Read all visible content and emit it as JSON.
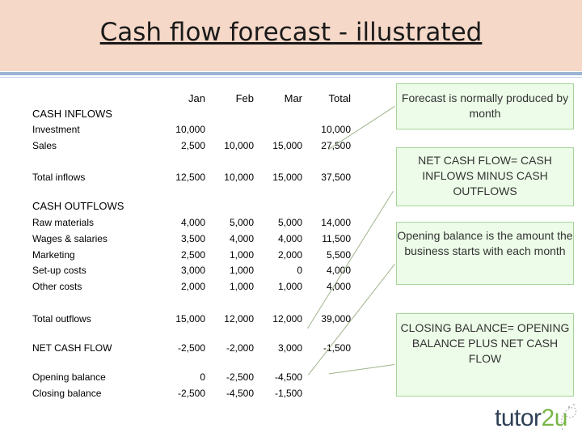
{
  "title": "Cash flow forecast - illustrated",
  "headers": {
    "jan": "Jan",
    "feb": "Feb",
    "mar": "Mar",
    "total": "Total"
  },
  "sections": {
    "inflows": "CASH INFLOWS",
    "outflows": "CASH OUTFLOWS"
  },
  "rows": {
    "investment": {
      "label": "Investment",
      "jan": "10,000",
      "feb": "",
      "mar": "",
      "total": "10,000"
    },
    "sales": {
      "label": "Sales",
      "jan": "2,500",
      "feb": "10,000",
      "mar": "15,000",
      "total": "27,500"
    },
    "total_inflows": {
      "label": "Total inflows",
      "jan": "12,500",
      "feb": "10,000",
      "mar": "15,000",
      "total": "37,500"
    },
    "raw_materials": {
      "label": "Raw materials",
      "jan": "4,000",
      "feb": "5,000",
      "mar": "5,000",
      "total": "14,000"
    },
    "wages": {
      "label": "Wages & salaries",
      "jan": "3,500",
      "feb": "4,000",
      "mar": "4,000",
      "total": "11,500"
    },
    "marketing": {
      "label": "Marketing",
      "jan": "2,500",
      "feb": "1,000",
      "mar": "2,000",
      "total": "5,500"
    },
    "setup": {
      "label": "Set-up costs",
      "jan": "3,000",
      "feb": "1,000",
      "mar": "0",
      "total": "4,000"
    },
    "other": {
      "label": "Other costs",
      "jan": "2,000",
      "feb": "1,000",
      "mar": "1,000",
      "total": "4,000"
    },
    "total_outflows": {
      "label": "Total outflows",
      "jan": "15,000",
      "feb": "12,000",
      "mar": "12,000",
      "total": "39,000"
    },
    "net_cash_flow": {
      "label": "NET CASH FLOW",
      "jan": "-2,500",
      "feb": "-2,000",
      "mar": "3,000",
      "total": "-1,500"
    },
    "opening": {
      "label": "Opening balance",
      "jan": "0",
      "feb": "-2,500",
      "mar": "-4,500",
      "total": ""
    },
    "closing": {
      "label": "Closing balance",
      "jan": "-2,500",
      "feb": "-4,500",
      "mar": "-1,500",
      "total": ""
    }
  },
  "notes": {
    "by_month": "Forecast is normally produced by month",
    "net_cash_flow": "NET CASH FLOW= CASH INFLOWS MINUS CASH OUTFLOWS",
    "opening_balance": "Opening balance is the amount the business starts with each month",
    "closing_balance": "CLOSING BALANCE= OPENING BALANCE PLUS NET CASH FLOW"
  },
  "logo": {
    "main": "tutor",
    "accent": "2u"
  }
}
